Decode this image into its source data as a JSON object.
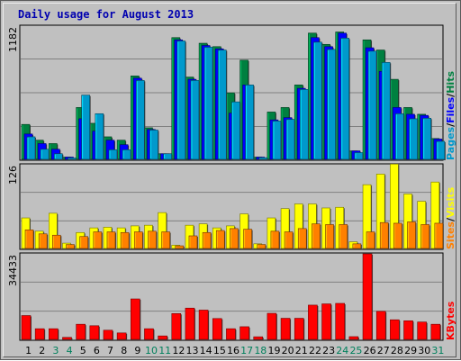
{
  "title": "Daily usage for August 2013",
  "colors": {
    "background": "#c0c0c0",
    "title": "#0000b0",
    "pages": "#0099cc",
    "files": "#0000ff",
    "hits": "#008040",
    "sites": "#ff8000",
    "visits": "#ffff00",
    "kbytes": "#ff0000",
    "weekend_label": "#00805c",
    "weekday_label": "#000000"
  },
  "chart_data": [
    {
      "type": "bar",
      "name": "hits-files-pages",
      "ymax_label": "1182",
      "ylim": [
        0,
        1182
      ],
      "legend": [
        "Pages",
        "/",
        "Files",
        "/",
        "Hits"
      ],
      "series": [
        {
          "name": "Hits",
          "values": [
            310,
            170,
            140,
            20,
            460,
            320,
            200,
            170,
            740,
            280,
            50,
            1080,
            730,
            1030,
            1000,
            590,
            880,
            20,
            420,
            460,
            660,
            1120,
            1020,
            1130,
            75,
            1060,
            970,
            710,
            460,
            400,
            185
          ]
        },
        {
          "name": "Files",
          "values": [
            225,
            140,
            90,
            20,
            360,
            250,
            170,
            130,
            720,
            265,
            50,
            1060,
            710,
            1010,
            980,
            410,
            660,
            20,
            350,
            370,
            630,
            1080,
            1000,
            1120,
            75,
            990,
            780,
            460,
            400,
            390,
            180
          ]
        },
        {
          "name": "Pages",
          "values": [
            200,
            90,
            50,
            12,
            570,
            405,
            85,
            85,
            700,
            260,
            50,
            1050,
            700,
            995,
            970,
            510,
            660,
            15,
            340,
            355,
            620,
            1040,
            975,
            1075,
            60,
            960,
            860,
            405,
            360,
            365,
            160
          ]
        }
      ],
      "categories": [
        "1",
        "2",
        "3",
        "4",
        "5",
        "6",
        "7",
        "8",
        "9",
        "10",
        "11",
        "12",
        "13",
        "14",
        "15",
        "16",
        "17",
        "18",
        "19",
        "20",
        "21",
        "22",
        "23",
        "24",
        "25",
        "26",
        "27",
        "28",
        "29",
        "30",
        "31"
      ]
    },
    {
      "type": "bar",
      "name": "visits-sites",
      "ymax_label": "126",
      "ylim": [
        0,
        126
      ],
      "legend": [
        "Sites",
        "/",
        "Visits"
      ],
      "series": [
        {
          "name": "Visits",
          "values": [
            46,
            26,
            53,
            8,
            24,
            31,
            32,
            31,
            34,
            35,
            54,
            5,
            35,
            37,
            31,
            34,
            52,
            7,
            46,
            60,
            67,
            67,
            61,
            62,
            10,
            96,
            112,
            127,
            82,
            71,
            100
          ]
        },
        {
          "name": "Sites",
          "values": [
            28,
            22,
            20,
            6,
            18,
            25,
            25,
            24,
            25,
            26,
            25,
            4,
            19,
            24,
            27,
            30,
            29,
            6,
            26,
            25,
            30,
            37,
            36,
            36,
            7,
            25,
            39,
            38,
            40,
            36,
            38
          ]
        }
      ],
      "categories": [
        "1",
        "2",
        "3",
        "4",
        "5",
        "6",
        "7",
        "8",
        "9",
        "10",
        "11",
        "12",
        "13",
        "14",
        "15",
        "16",
        "17",
        "18",
        "19",
        "20",
        "21",
        "22",
        "23",
        "24",
        "25",
        "26",
        "27",
        "28",
        "29",
        "30",
        "31"
      ]
    },
    {
      "type": "bar",
      "name": "kbytes",
      "ymax_label": "34433",
      "ylim": [
        0,
        34433
      ],
      "legend": [
        "KBytes"
      ],
      "series": [
        {
          "name": "KBytes",
          "values": [
            9600,
            4300,
            4300,
            820,
            6100,
            5500,
            3700,
            2600,
            16300,
            4300,
            1400,
            10400,
            12600,
            11800,
            8400,
            4300,
            5100,
            1050,
            10500,
            8500,
            8500,
            13800,
            14300,
            14500,
            1100,
            34433,
            11300,
            7900,
            7500,
            7000,
            6100
          ]
        }
      ],
      "categories": [
        "1",
        "2",
        "3",
        "4",
        "5",
        "6",
        "7",
        "8",
        "9",
        "10",
        "11",
        "12",
        "13",
        "14",
        "15",
        "16",
        "17",
        "18",
        "19",
        "20",
        "21",
        "22",
        "23",
        "24",
        "25",
        "26",
        "27",
        "28",
        "29",
        "30",
        "31"
      ]
    }
  ],
  "x_axis": {
    "labels": [
      "1",
      "2",
      "3",
      "4",
      "5",
      "6",
      "7",
      "8",
      "9",
      "10",
      "11",
      "12",
      "13",
      "14",
      "15",
      "16",
      "17",
      "18",
      "19",
      "20",
      "21",
      "22",
      "23",
      "24",
      "25",
      "26",
      "27",
      "28",
      "29",
      "30",
      "31"
    ],
    "weekend_days": [
      3,
      4,
      10,
      11,
      17,
      18,
      24,
      25,
      31
    ]
  }
}
